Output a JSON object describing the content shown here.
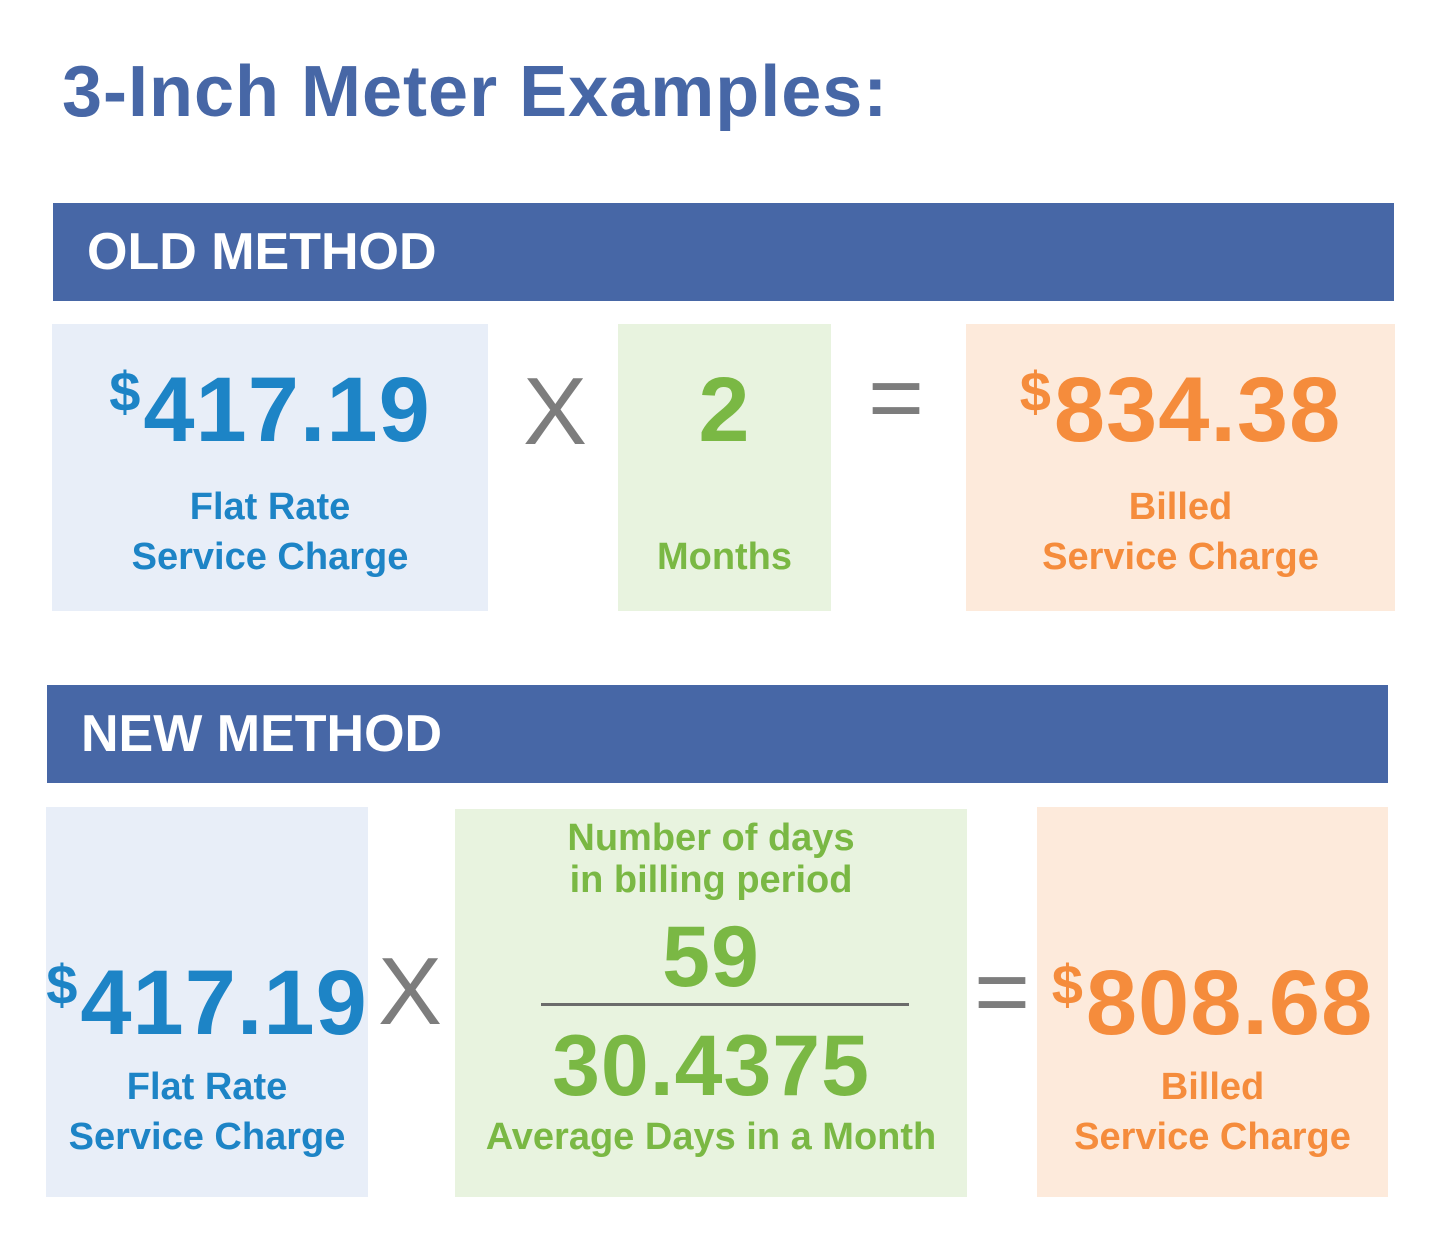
{
  "title": "3-Inch Meter Examples:",
  "old_method": {
    "header": "OLD METHOD",
    "rate": {
      "symbol": "$",
      "amount": "417.19",
      "label_line1": "Flat Rate",
      "label_line2": "Service Charge"
    },
    "multiply": "X",
    "months": {
      "value": "2",
      "label": "Months"
    },
    "equals": "=",
    "billed": {
      "symbol": "$",
      "amount": "834.38",
      "label_line1": "Billed",
      "label_line2": "Service Charge"
    }
  },
  "new_method": {
    "header": "NEW METHOD",
    "rate": {
      "symbol": "$",
      "amount": "417.19",
      "label_line1": "Flat Rate",
      "label_line2": "Service Charge"
    },
    "multiply": "X",
    "fraction": {
      "top_label_line1": "Number of days",
      "top_label_line2": "in billing period",
      "numerator": "59",
      "denominator": "30.4375",
      "bottom_label": "Average Days in a Month"
    },
    "equals": "=",
    "billed": {
      "symbol": "$",
      "amount": "808.68",
      "label_line1": "Billed",
      "label_line2": "Service Charge"
    }
  },
  "colors": {
    "header_bar": "#4767a6",
    "rate_text": "#1d84c6",
    "rate_bg": "#e8eef8",
    "months_text": "#7ab844",
    "months_bg": "#e8f3df",
    "billed_text": "#f58c3c",
    "billed_bg": "#fdeadb",
    "operator": "#7d7d7d"
  }
}
